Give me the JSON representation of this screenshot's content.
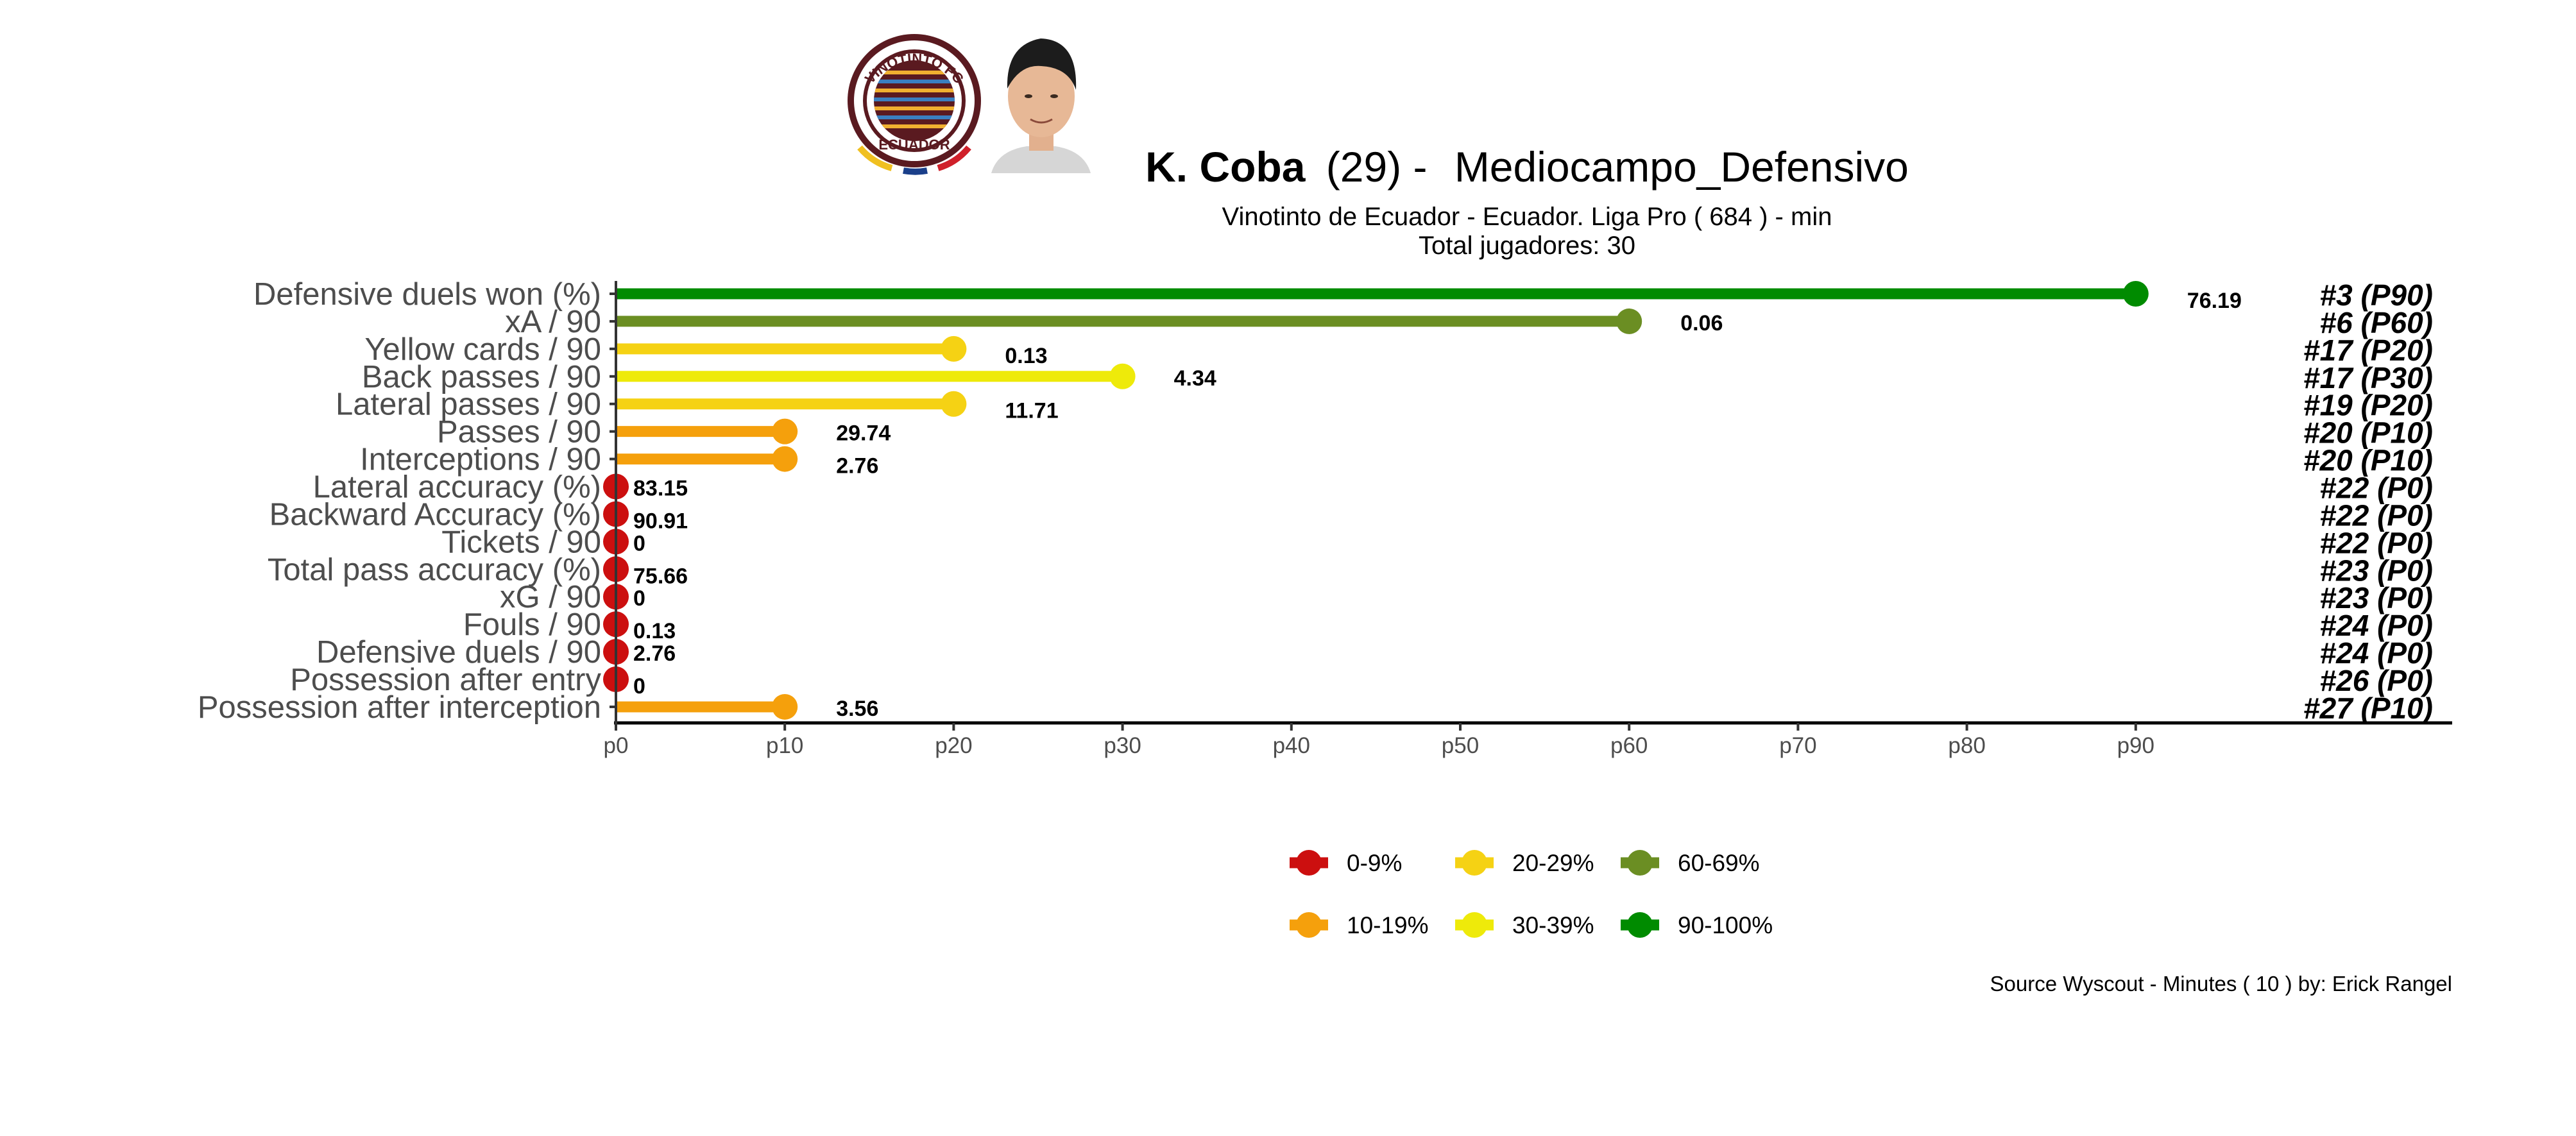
{
  "header": {
    "player_name": "K. Coba",
    "age_text": "(29) -",
    "position": "Mediocampo_Defensivo",
    "subtitle_line1": "Vinotinto de Ecuador  -  Ecuador. Liga Pro  ( 684 ) - min",
    "subtitle_line2": "Total jugadores:  30",
    "club_logo_text_top": "VINOTINTO FC",
    "club_logo_text_bottom": "ECUADOR"
  },
  "footer": {
    "source": "Source Wyscout - Minutes ( 10 ) by: Erick Rangel"
  },
  "chart_data": {
    "type": "bar",
    "subtype": "lollipop",
    "orientation": "horizontal",
    "x_ticks": [
      "p0",
      "p10",
      "p20",
      "p30",
      "p40",
      "p50",
      "p60",
      "p70",
      "p80",
      "p90"
    ],
    "xlim": [
      0,
      100
    ],
    "grid": false,
    "legend_position": "bottom",
    "metrics": [
      {
        "label": "Defensive duels won (%)",
        "percentile": 90,
        "value": "76.19",
        "rank": "#3 (P90)",
        "band": "90-100%"
      },
      {
        "label": "xA / 90",
        "percentile": 60,
        "value": "0.06",
        "rank": "#6 (P60)",
        "band": "60-69%"
      },
      {
        "label": "Yellow cards / 90",
        "percentile": 20,
        "value": "0.13",
        "rank": "#17 (P20)",
        "band": "20-29%"
      },
      {
        "label": "Back passes / 90",
        "percentile": 30,
        "value": "4.34",
        "rank": "#17 (P30)",
        "band": "30-39%"
      },
      {
        "label": "Lateral passes / 90",
        "percentile": 20,
        "value": "11.71",
        "rank": "#19 (P20)",
        "band": "20-29%"
      },
      {
        "label": "Passes / 90",
        "percentile": 10,
        "value": "29.74",
        "rank": "#20 (P10)",
        "band": "10-19%"
      },
      {
        "label": "Interceptions / 90",
        "percentile": 10,
        "value": "2.76",
        "rank": "#20 (P10)",
        "band": "10-19%"
      },
      {
        "label": "Lateral accuracy (%)",
        "percentile": 0,
        "value": "83.15",
        "rank": "#22 (P0)",
        "band": "0-9%"
      },
      {
        "label": "Backward Accuracy (%)",
        "percentile": 0,
        "value": "90.91",
        "rank": "#22 (P0)",
        "band": "0-9%"
      },
      {
        "label": "Tickets / 90",
        "percentile": 0,
        "value": "0",
        "rank": "#22 (P0)",
        "band": "0-9%"
      },
      {
        "label": "Total pass accuracy (%)",
        "percentile": 0,
        "value": "75.66",
        "rank": "#23 (P0)",
        "band": "0-9%"
      },
      {
        "label": "xG / 90",
        "percentile": 0,
        "value": "0",
        "rank": "#23 (P0)",
        "band": "0-9%"
      },
      {
        "label": "Fouls / 90",
        "percentile": 0,
        "value": "0.13",
        "rank": "#24 (P0)",
        "band": "0-9%"
      },
      {
        "label": "Defensive duels / 90",
        "percentile": 0,
        "value": "2.76",
        "rank": "#24 (P0)",
        "band": "0-9%"
      },
      {
        "label": "Possession after entry",
        "percentile": 0,
        "value": "0",
        "rank": "#26 (P0)",
        "band": "0-9%"
      },
      {
        "label": "Possession after interception",
        "percentile": 10,
        "value": "3.56",
        "rank": "#27 (P10)",
        "band": "10-19%"
      }
    ],
    "legend": [
      {
        "label": "0-9%",
        "color": "#cc0f0f"
      },
      {
        "label": "20-29%",
        "color": "#f5d214"
      },
      {
        "label": "60-69%",
        "color": "#6b8e23"
      },
      {
        "label": "10-19%",
        "color": "#f5a00c"
      },
      {
        "label": "30-39%",
        "color": "#eeea0a"
      },
      {
        "label": "90-100%",
        "color": "#008b00"
      }
    ]
  }
}
